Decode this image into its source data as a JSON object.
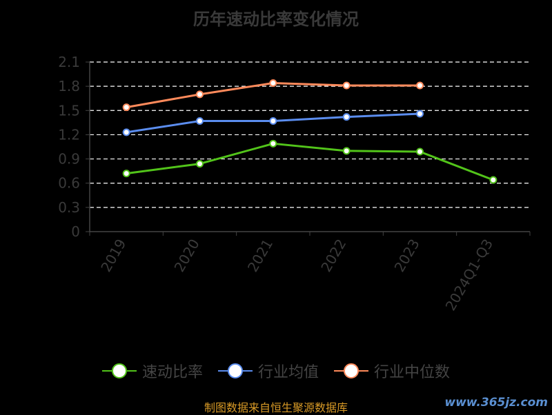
{
  "chart_data": {
    "type": "line",
    "title": "历年速动比率变化情况",
    "categories": [
      "2019",
      "2020",
      "2021",
      "2022",
      "2023",
      "2024Q1-Q3"
    ],
    "ylim": [
      0,
      2.1
    ],
    "yticks": [
      "0",
      "0.3",
      "0.6",
      "0.9",
      "1.2",
      "1.5",
      "1.8",
      "2.1"
    ],
    "grid": true,
    "legend_position": "bottom",
    "series": [
      {
        "name": "速动比率",
        "color": "#52c41a",
        "values": [
          0.72,
          0.84,
          1.09,
          1.0,
          0.99,
          0.64
        ]
      },
      {
        "name": "行业均值",
        "color": "#5b8def",
        "values": [
          1.23,
          1.37,
          1.37,
          1.42,
          1.46,
          null
        ]
      },
      {
        "name": "行业中位数",
        "color": "#ff8a5b",
        "values": [
          1.54,
          1.7,
          1.84,
          1.81,
          1.81,
          null
        ]
      }
    ]
  },
  "source_text": "制图数据来自恒生聚源数据库",
  "watermark_text": "www.365jz.com"
}
